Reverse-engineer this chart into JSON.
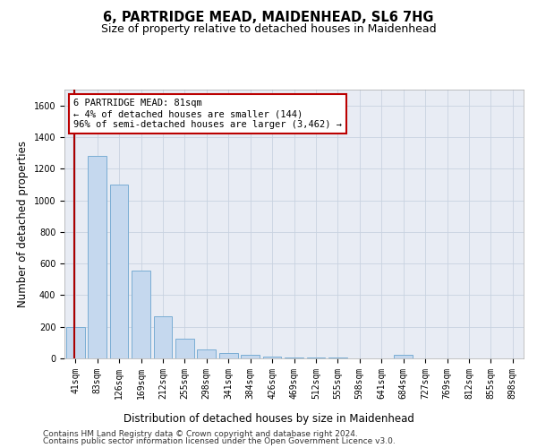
{
  "title1": "6, PARTRIDGE MEAD, MAIDENHEAD, SL6 7HG",
  "title2": "Size of property relative to detached houses in Maidenhead",
  "xlabel": "Distribution of detached houses by size in Maidenhead",
  "ylabel": "Number of detached properties",
  "categories": [
    "41sqm",
    "83sqm",
    "126sqm",
    "169sqm",
    "212sqm",
    "255sqm",
    "298sqm",
    "341sqm",
    "384sqm",
    "426sqm",
    "469sqm",
    "512sqm",
    "555sqm",
    "598sqm",
    "641sqm",
    "684sqm",
    "727sqm",
    "769sqm",
    "812sqm",
    "855sqm",
    "898sqm"
  ],
  "values": [
    200,
    1278,
    1100,
    555,
    268,
    122,
    57,
    33,
    22,
    14,
    5,
    5,
    5,
    0,
    0,
    22,
    0,
    0,
    0,
    0,
    0
  ],
  "bar_color": "#c5d8ee",
  "bar_edge_color": "#7aadd4",
  "vline_color": "#aa0000",
  "annotation_line1": "6 PARTRIDGE MEAD: 81sqm",
  "annotation_line2": "← 4% of detached houses are smaller (144)",
  "annotation_line3": "96% of semi-detached houses are larger (3,462) →",
  "annotation_box_color": "#bb0000",
  "ylim": [
    0,
    1700
  ],
  "yticks": [
    0,
    200,
    400,
    600,
    800,
    1000,
    1200,
    1400,
    1600
  ],
  "grid_color": "#c8d2e0",
  "bg_color": "#e8ecf4",
  "footnote1": "Contains HM Land Registry data © Crown copyright and database right 2024.",
  "footnote2": "Contains public sector information licensed under the Open Government Licence v3.0.",
  "title_fontsize": 10.5,
  "subtitle_fontsize": 9,
  "axis_label_fontsize": 8.5,
  "tick_fontsize": 7,
  "annotation_fontsize": 7.5,
  "footnote_fontsize": 6.5
}
